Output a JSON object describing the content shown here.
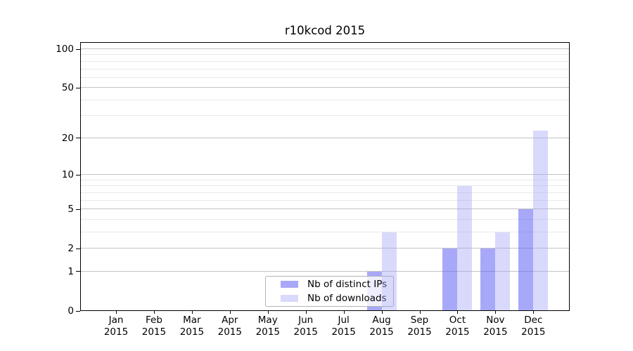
{
  "chart_data": {
    "type": "bar",
    "title": "r10kcod 2015",
    "categories": [
      "Jan",
      "Feb",
      "Mar",
      "Apr",
      "May",
      "Jun",
      "Jul",
      "Aug",
      "Sep",
      "Oct",
      "Nov",
      "Dec"
    ],
    "category_year": "2015",
    "series": [
      {
        "name": "Nb of distinct IPs",
        "color": "rgba(100,100,242,0.56)",
        "color_flat": "#a9a9f4",
        "values": [
          0,
          0,
          0,
          0,
          0,
          0,
          0,
          1,
          0,
          2,
          2,
          5
        ]
      },
      {
        "name": "Nb of downloads",
        "color": "rgba(160,160,245,0.40)",
        "color_flat": "#dcdcf9",
        "values": [
          0,
          0,
          0,
          0,
          0,
          0,
          0,
          3,
          0,
          8,
          3,
          23
        ]
      }
    ],
    "y_axis": {
      "scale": "log1p",
      "ticks": [
        0,
        1,
        2,
        5,
        10,
        20,
        50,
        100
      ],
      "minor_gridlines": [
        3,
        4,
        6,
        7,
        8,
        9,
        30,
        40,
        60,
        70,
        80,
        90
      ],
      "range_top_value": 114
    },
    "x_axis": {
      "tick_count": 12
    },
    "grid": true,
    "legend": {
      "position": "lower-center-inside"
    },
    "colors": {
      "axis": "#000000",
      "grid_major": "#c4c4c4",
      "grid_minor": "#e9e9e9",
      "background": "#ffffff"
    }
  }
}
